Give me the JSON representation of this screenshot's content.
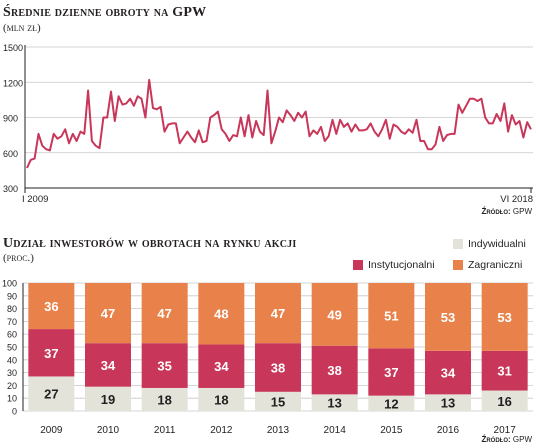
{
  "line_chart": {
    "title": "Średnie dzienne obroty na GPW",
    "subtitle": "(mln zł)",
    "source_label": "Źródło:",
    "source_value": "GPW"
  },
  "bar_chart": {
    "title": "Udział inwestorów w obrotach na rynku akcji",
    "subtitle": "(proc.)",
    "source_label": "Źródło:",
    "source_value": "GPW"
  },
  "colors": {
    "line": "#c8375a",
    "individual": "#e3e3d9",
    "institutional": "#c8375a",
    "foreign": "#e8824a",
    "grid": "#c8c8c8"
  },
  "chart_data": [
    {
      "type": "line",
      "title": "Średnie dzienne obroty na GPW",
      "ylabel": "(mln zł)",
      "ylim": [
        300,
        1500
      ],
      "yticks": [
        300,
        600,
        900,
        1200,
        1500
      ],
      "x_start_label": "I 2009",
      "x_end_label": "VI 2018",
      "grid": true,
      "series": [
        {
          "values": [
            470,
            540,
            550,
            760,
            660,
            630,
            620,
            760,
            720,
            740,
            800,
            680,
            760,
            700,
            780,
            760,
            1130,
            700,
            660,
            640,
            900,
            900,
            1120,
            870,
            1080,
            1010,
            1020,
            1060,
            1000,
            1080,
            1060,
            900,
            1220,
            980,
            970,
            990,
            780,
            840,
            850,
            850,
            680,
            730,
            780,
            730,
            690,
            790,
            690,
            700,
            900,
            920,
            950,
            800,
            760,
            700,
            750,
            740,
            900,
            740,
            920,
            730,
            870,
            780,
            750,
            1130,
            680,
            780,
            900,
            860,
            960,
            920,
            870,
            940,
            900,
            950,
            740,
            790,
            760,
            820,
            700,
            740,
            880,
            760,
            880,
            820,
            850,
            780,
            840,
            790,
            790,
            800,
            850,
            780,
            740,
            800,
            880,
            720,
            840,
            820,
            780,
            760,
            800,
            770,
            880,
            700,
            700,
            630,
            630,
            670,
            820,
            700,
            750,
            760,
            760,
            1010,
            940,
            1000,
            1060,
            1060,
            1040,
            1060,
            900,
            850,
            850,
            930,
            870,
            1020,
            780,
            920,
            840,
            870,
            730,
            860,
            800
          ]
        }
      ]
    },
    {
      "type": "bar",
      "stacked": true,
      "title": "Udział inwestorów w obrotach na rynku akcji",
      "ylabel": "(proc.)",
      "ylim": [
        0,
        100
      ],
      "yticks": [
        0,
        10,
        20,
        30,
        40,
        50,
        60,
        70,
        80,
        90,
        100
      ],
      "grid": true,
      "legend_position": "top-right",
      "categories": [
        "2009",
        "2010",
        "2011",
        "2012",
        "2013",
        "2014",
        "2015",
        "2016",
        "2017"
      ],
      "series": [
        {
          "name": "Indywidualni",
          "values": [
            27,
            19,
            18,
            18,
            15,
            13,
            12,
            13,
            16
          ]
        },
        {
          "name": "Instytucjonalni",
          "values": [
            37,
            34,
            35,
            34,
            38,
            38,
            37,
            34,
            31
          ]
        },
        {
          "name": "Zagraniczni",
          "values": [
            36,
            47,
            47,
            48,
            47,
            49,
            51,
            53,
            53
          ]
        }
      ]
    }
  ]
}
